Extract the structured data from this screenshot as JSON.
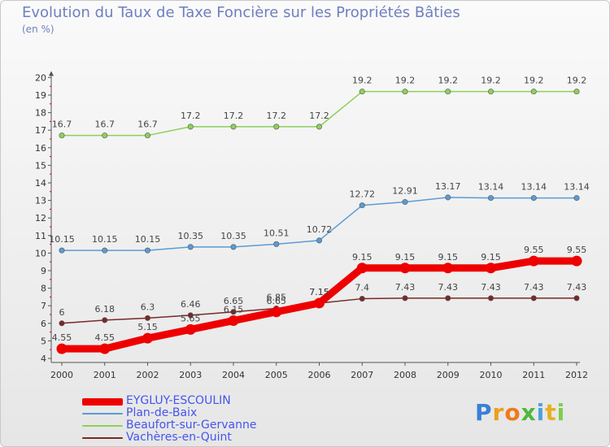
{
  "title": "Evolution du Taux de Taxe Foncière sur les Propriétés Bâties",
  "unit_label": "(en %)",
  "logo": {
    "text": "Proxiti",
    "letter_colors": [
      "#3a7fd5",
      "#e8a020",
      "#ef7a1a",
      "#4fb83a",
      "#4da0e0",
      "#e8b020",
      "#7ccf4a"
    ]
  },
  "chart_data": {
    "type": "line",
    "title": "Evolution du Taux de Taxe Foncière sur les Propriétés Bâties",
    "ylabel": "(en %)",
    "x": [
      "2000",
      "2001",
      "2002",
      "2003",
      "2004",
      "2005",
      "2006",
      "2007",
      "2008",
      "2009",
      "2010",
      "2011",
      "2012"
    ],
    "ylim": [
      4,
      20
    ],
    "yticks": [
      4,
      5,
      6,
      7,
      8,
      9,
      10,
      11,
      12,
      13,
      14,
      15,
      16,
      17,
      18,
      19,
      20
    ],
    "grid": false,
    "legend_position": "bottom-left",
    "series": [
      {
        "name": "EYGLUY-ESCOULIN",
        "color": "#ee0000",
        "values": [
          4.55,
          4.55,
          5.15,
          5.65,
          6.15,
          6.65,
          7.15,
          9.15,
          9.15,
          9.15,
          9.15,
          9.55,
          9.55
        ],
        "labels": [
          "4.55",
          "4.55",
          "5.15",
          "5.65",
          "6.15",
          "6.65",
          "7.15",
          "9.15",
          "9.15",
          "9.15",
          "9.15",
          "9.55",
          "9.55"
        ]
      },
      {
        "name": "Plan-de-Baix",
        "color": "#5b9bd5",
        "values": [
          10.15,
          10.15,
          10.15,
          10.35,
          10.35,
          10.51,
          10.72,
          12.72,
          12.91,
          13.17,
          13.14,
          13.14,
          13.14
        ],
        "labels": [
          "10.15",
          "10.15",
          "10.15",
          "10.35",
          "10.35",
          "10.51",
          "10.72",
          "12.72",
          "12.91",
          "13.17",
          "13.14",
          "13.14",
          "13.14"
        ]
      },
      {
        "name": "Beaufort-sur-Gervanne",
        "color": "#8ed05a",
        "values": [
          16.7,
          16.7,
          16.7,
          17.2,
          17.2,
          17.2,
          17.2,
          19.2,
          19.2,
          19.2,
          19.2,
          19.2,
          19.2
        ],
        "labels": [
          "16.7",
          "16.7",
          "16.7",
          "17.2",
          "17.2",
          "17.2",
          "17.2",
          "19.2",
          "19.2",
          "19.2",
          "19.2",
          "19.2",
          "19.2"
        ]
      },
      {
        "name": "Vachères-en-Quint",
        "color": "#7a2828",
        "values": [
          6,
          6.18,
          6.3,
          6.46,
          6.65,
          6.85,
          7.15,
          7.4,
          7.43,
          7.43,
          7.43,
          7.43,
          7.43
        ],
        "labels": [
          "6",
          "6.18",
          "6.3",
          "6.46",
          "6.65",
          "6.85",
          "7.15",
          "7.4",
          "7.43",
          "7.43",
          "7.43",
          "7.43",
          "7.43"
        ]
      }
    ]
  }
}
